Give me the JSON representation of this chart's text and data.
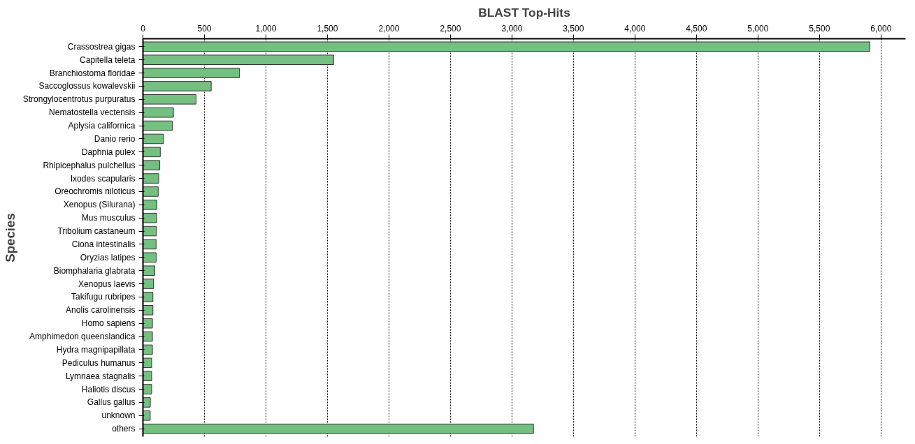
{
  "chart_data": {
    "type": "bar",
    "orientation": "horizontal",
    "title": "BLAST Top-Hits",
    "ylabel": "Species",
    "categories": [
      "Crassostrea gigas",
      "Capitella teleta",
      "Branchiostoma floridae",
      "Saccoglossus kowalevskii",
      "Strongylocentrotus purpuratus",
      "Nematostella vectensis",
      "Aplysia californica",
      "Danio rerio",
      "Daphnia pulex",
      "Rhipicephalus pulchellus",
      "Ixodes scapularis",
      "Oreochromis niloticus",
      "Xenopus (Silurana)",
      "Mus musculus",
      "Tribolium castaneum",
      "Ciona intestinalis",
      "Oryzias latipes",
      "Biomphalaria glabrata",
      "Xenopus laevis",
      "Takifugu rubripes",
      "Anolis carolinensis",
      "Homo sapiens",
      "Amphimedon queenslandica",
      "Hydra magnipapillata",
      "Pediculus humanus",
      "Lymnaea stagnalis",
      "Haliotis discus",
      "Gallus gallus",
      "unknown",
      "others"
    ],
    "values": [
      5910,
      1550,
      785,
      555,
      432,
      248,
      239,
      167,
      141,
      137,
      128,
      124,
      113,
      111,
      109,
      107,
      107,
      96,
      86,
      81,
      81,
      77,
      77,
      77,
      71,
      71,
      71,
      60,
      59,
      3175
    ],
    "color": "#74c080",
    "xlim": [
      0,
      6200
    ],
    "xticks": [
      0,
      500,
      {
        "value": 1000,
        "label": "1,000"
      },
      {
        "value": 1500,
        "label": "1,500"
      },
      {
        "value": 2000,
        "label": "2,000"
      },
      {
        "value": 2500,
        "label": "2,500"
      },
      {
        "value": 3000,
        "label": "3,000"
      },
      {
        "value": 3500,
        "label": "3,500"
      },
      {
        "value": 4000,
        "label": "4,000"
      },
      {
        "value": 4500,
        "label": "4,500"
      },
      {
        "value": 5000,
        "label": "5,000"
      },
      {
        "value": 5500,
        "label": "5,500"
      },
      {
        "value": 6000,
        "label": "6,000"
      }
    ],
    "grid": "x"
  }
}
